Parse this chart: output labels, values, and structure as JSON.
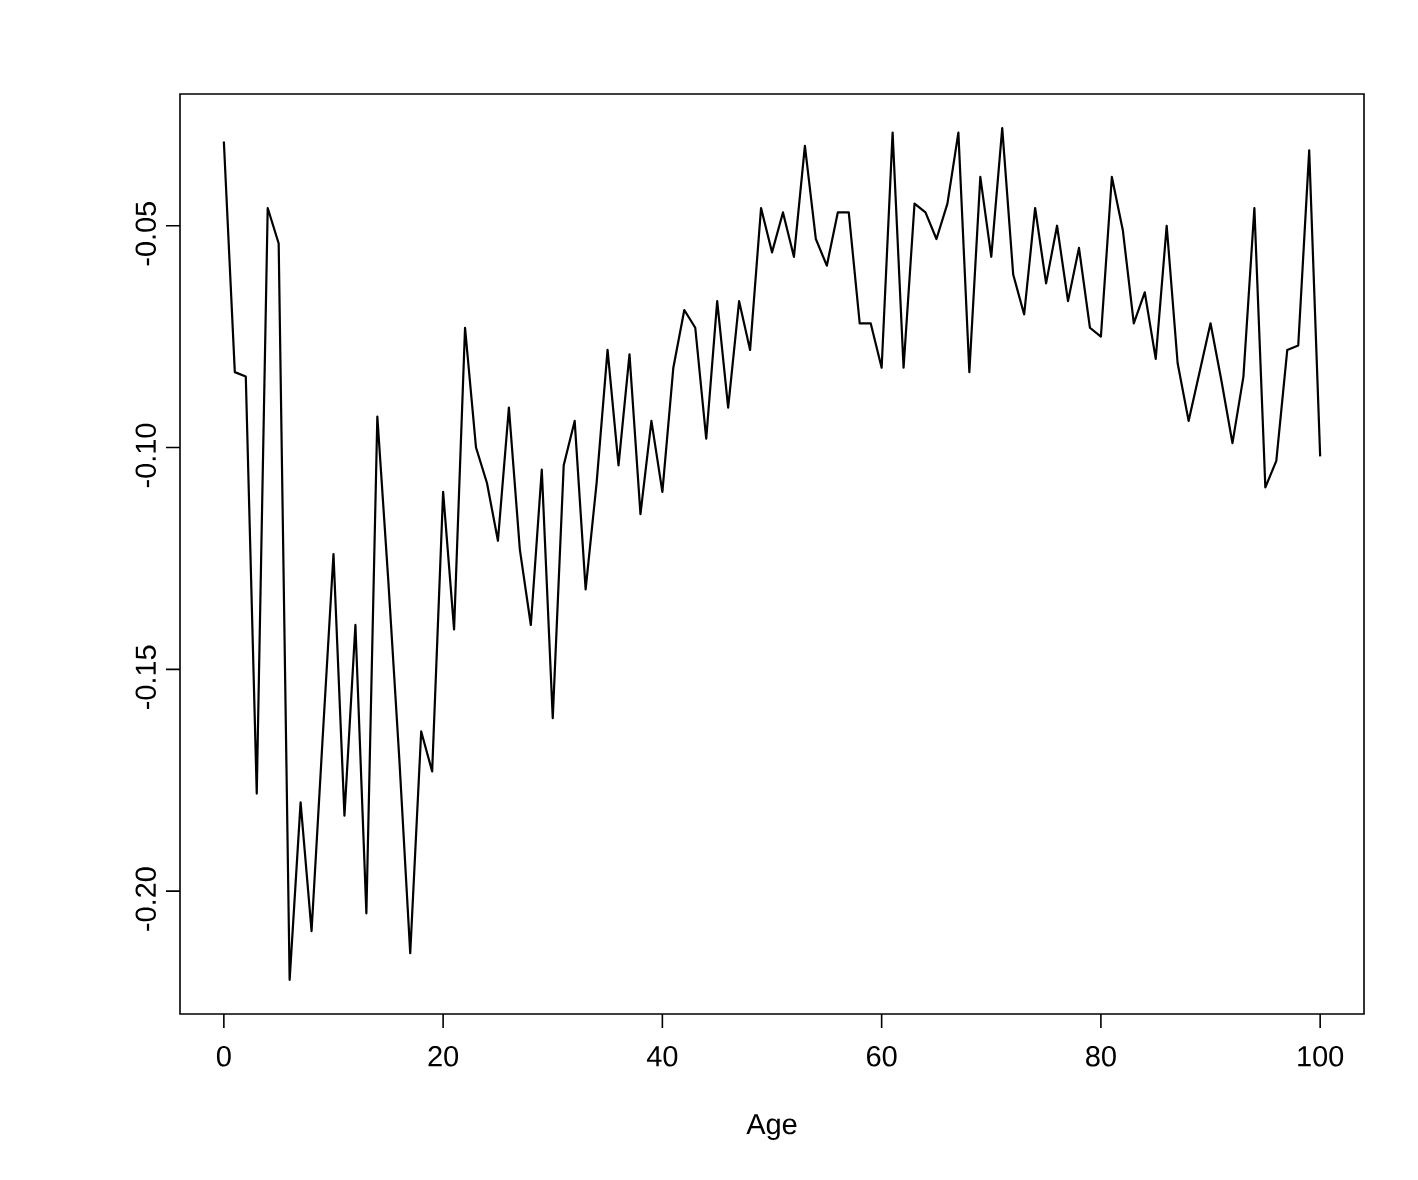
{
  "chart_data": {
    "type": "line",
    "xlabel": "Age",
    "x": [
      0,
      1,
      2,
      3,
      4,
      5,
      6,
      7,
      8,
      9,
      10,
      11,
      12,
      13,
      14,
      15,
      16,
      17,
      18,
      19,
      20,
      21,
      22,
      23,
      24,
      25,
      26,
      27,
      28,
      29,
      30,
      31,
      32,
      33,
      34,
      35,
      36,
      37,
      38,
      39,
      40,
      41,
      42,
      43,
      44,
      45,
      46,
      47,
      48,
      49,
      50,
      51,
      52,
      53,
      54,
      55,
      56,
      57,
      58,
      59,
      60,
      61,
      62,
      63,
      64,
      65,
      66,
      67,
      68,
      69,
      70,
      71,
      72,
      73,
      74,
      75,
      76,
      77,
      78,
      79,
      80,
      81,
      82,
      83,
      84,
      85,
      86,
      87,
      88,
      89,
      90,
      91,
      92,
      93,
      94,
      95,
      96,
      97,
      98,
      99,
      100
    ],
    "series": [
      {
        "color": "#000000",
        "values": [
          -0.031,
          -0.083,
          -0.084,
          -0.178,
          -0.046,
          -0.054,
          -0.22,
          -0.18,
          -0.209,
          -0.166,
          -0.124,
          -0.183,
          -0.14,
          -0.205,
          -0.093,
          -0.13,
          -0.17,
          -0.214,
          -0.164,
          -0.173,
          -0.11,
          -0.141,
          -0.073,
          -0.1,
          -0.108,
          -0.121,
          -0.091,
          -0.123,
          -0.14,
          -0.105,
          -0.161,
          -0.104,
          -0.094,
          -0.132,
          -0.108,
          -0.078,
          -0.104,
          -0.079,
          -0.115,
          -0.094,
          -0.11,
          -0.082,
          -0.069,
          -0.073,
          -0.098,
          -0.067,
          -0.091,
          -0.067,
          -0.078,
          -0.046,
          -0.056,
          -0.047,
          -0.057,
          -0.032,
          -0.053,
          -0.059,
          -0.047,
          -0.047,
          -0.072,
          -0.072,
          -0.082,
          -0.029,
          -0.082,
          -0.045,
          -0.047,
          -0.053,
          -0.045,
          -0.029,
          -0.083,
          -0.039,
          -0.057,
          -0.028,
          -0.061,
          -0.07,
          -0.046,
          -0.063,
          -0.05,
          -0.067,
          -0.055,
          -0.073,
          -0.075,
          -0.039,
          -0.051,
          -0.072,
          -0.065,
          -0.08,
          -0.05,
          -0.081,
          -0.094,
          -0.083,
          -0.072,
          -0.085,
          -0.099,
          -0.084,
          -0.046,
          -0.109,
          -0.103,
          -0.078,
          -0.077,
          -0.033,
          -0.102
        ]
      }
    ],
    "xlim": [
      -4,
      104
    ],
    "ylim": [
      -0.2277,
      -0.0203
    ],
    "xticks": [
      0,
      20,
      40,
      60,
      80,
      100
    ],
    "yticks": [
      {
        "value": -0.2,
        "label": "-0.20"
      },
      {
        "value": -0.15,
        "label": "-0.15"
      },
      {
        "value": -0.1,
        "label": "-0.10"
      },
      {
        "value": -0.05,
        "label": "-0.05"
      }
    ]
  }
}
